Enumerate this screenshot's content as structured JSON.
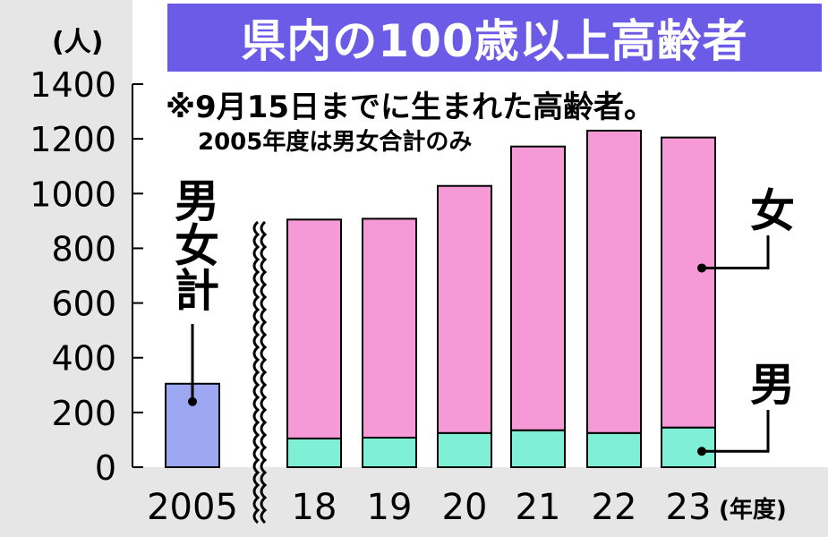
{
  "header": {
    "title": "県内の100歳以上高齢者",
    "unit": "(人)"
  },
  "notes": {
    "line1": "※9月15日までに生まれた高齢者。",
    "line2": "2005年度は男女合計のみ"
  },
  "labels": {
    "total": "男女計",
    "female": "女",
    "male": "男"
  },
  "colors": {
    "title_bg": "#6b5be6",
    "total": "#9ea7f2",
    "female": "#f59ad6",
    "male": "#7ff0d6",
    "background_band": "#e6e6e6"
  },
  "chart_data": {
    "type": "bar",
    "stacked": true,
    "x_unit": "(年度)",
    "y_unit": "(人)",
    "ylim": [
      0,
      1400
    ],
    "y_ticks": [
      0,
      200,
      400,
      600,
      800,
      1000,
      1200,
      1400
    ],
    "axis_break": "after 2005",
    "categories": [
      "2005",
      "18",
      "19",
      "20",
      "21",
      "22",
      "23"
    ],
    "series": [
      {
        "name": "男女計",
        "color": "#9ea7f2",
        "values": [
          305,
          null,
          null,
          null,
          null,
          null,
          null
        ]
      },
      {
        "name": "男",
        "color": "#7ff0d6",
        "values": [
          null,
          105,
          108,
          125,
          135,
          125,
          145
        ]
      },
      {
        "name": "女",
        "color": "#f59ad6",
        "values": [
          null,
          800,
          800,
          903,
          1037,
          1105,
          1060
        ]
      }
    ],
    "totals": [
      305,
      905,
      908,
      1028,
      1172,
      1230,
      1205
    ],
    "grid": false
  }
}
